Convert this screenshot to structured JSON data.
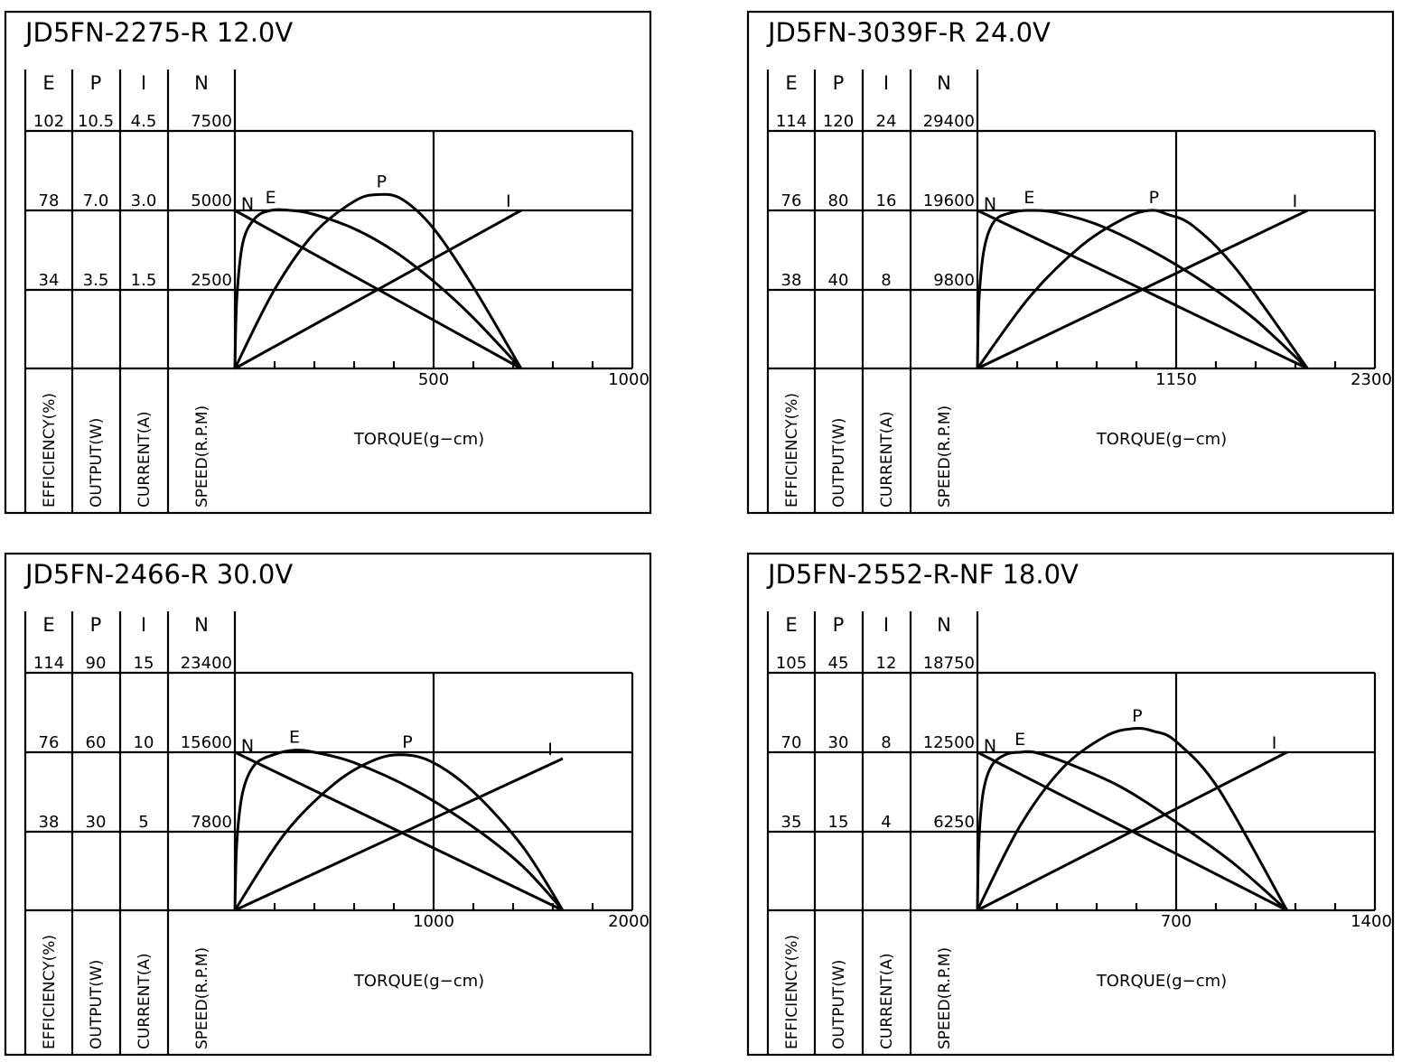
{
  "chart_data": [
    {
      "type": "line",
      "title": "JD5FN-2275-R   12.0V",
      "xlabel": "TORQUE(g−cm)",
      "x_ticks": [
        "500",
        "1000"
      ],
      "xlim": [
        0,
        1000
      ],
      "columns": [
        {
          "header": "E",
          "label": "EFFICIENCY(%)",
          "ticks": [
            "34",
            "78",
            "102"
          ]
        },
        {
          "header": "P",
          "label": "OUTPUT(W)",
          "ticks": [
            "3.5",
            "7.0",
            "10.5"
          ]
        },
        {
          "header": "I",
          "label": "CURRENT(A)",
          "ticks": [
            "1.5",
            "3.0",
            "4.5"
          ]
        },
        {
          "header": "N",
          "label": "SPEED(R.P.M)",
          "ticks": [
            "2500",
            "5000",
            "7500"
          ]
        }
      ],
      "grid": true,
      "series": [
        {
          "name": "N",
          "x": [
            0,
            720
          ],
          "y": [
            5000,
            0
          ]
        },
        {
          "name": "I",
          "x": [
            0,
            720
          ],
          "y": [
            0,
            3.0
          ]
        },
        {
          "name": "P",
          "x": [
            0,
            100,
            200,
            300,
            360,
            420,
            500,
            600,
            720
          ],
          "y": [
            0,
            3.5,
            6.0,
            7.4,
            7.7,
            7.5,
            6.2,
            3.6,
            0
          ]
        },
        {
          "name": "E",
          "x": [
            0,
            5,
            20,
            50,
            90,
            140,
            200,
            300,
            400,
            500,
            600,
            720
          ],
          "y": [
            0,
            35,
            62,
            74,
            78,
            78,
            76,
            69,
            58,
            43,
            25,
            0
          ]
        }
      ],
      "curve_labels": [
        "N",
        "E",
        "P",
        "I"
      ]
    },
    {
      "type": "line",
      "title": "JD5FN-3039F-R   24.0V",
      "xlabel": "TORQUE(g−cm)",
      "x_ticks": [
        "1150",
        "2300"
      ],
      "xlim": [
        0,
        2300
      ],
      "columns": [
        {
          "header": "E",
          "label": "EFFICIENCY(%)",
          "ticks": [
            "38",
            "76",
            "114"
          ]
        },
        {
          "header": "P",
          "label": "OUTPUT(W)",
          "ticks": [
            "40",
            "80",
            "120"
          ]
        },
        {
          "header": "I",
          "label": "CURRENT(A)",
          "ticks": [
            "8",
            "16",
            "24"
          ]
        },
        {
          "header": "N",
          "label": "SPEED(R.P.M)",
          "ticks": [
            "9800",
            "19600",
            "29400"
          ]
        }
      ],
      "grid": true,
      "series": [
        {
          "name": "N",
          "x": [
            0,
            1910
          ],
          "y": [
            19600,
            0
          ]
        },
        {
          "name": "I",
          "x": [
            0,
            1910
          ],
          "y": [
            0,
            16
          ]
        },
        {
          "name": "P",
          "x": [
            0,
            300,
            600,
            850,
            1000,
            1100,
            1250,
            1500,
            1910
          ],
          "y": [
            0,
            36,
            62,
            76,
            80,
            78,
            72,
            50,
            0
          ]
        },
        {
          "name": "E",
          "x": [
            0,
            10,
            40,
            100,
            200,
            300,
            450,
            700,
            1000,
            1300,
            1600,
            1910
          ],
          "y": [
            0,
            34,
            58,
            71,
            75,
            76,
            75,
            69,
            57,
            42,
            24,
            0
          ]
        }
      ],
      "curve_labels": [
        "N",
        "E",
        "P",
        "I"
      ]
    },
    {
      "type": "line",
      "title": "JD5FN-2466-R   30.0V",
      "xlabel": "TORQUE(g−cm)",
      "x_ticks": [
        "1000",
        "2000"
      ],
      "xlim": [
        0,
        2000
      ],
      "columns": [
        {
          "header": "E",
          "label": "EFFICIENCY(%)",
          "ticks": [
            "38",
            "76",
            "114"
          ]
        },
        {
          "header": "P",
          "label": "OUTPUT(W)",
          "ticks": [
            "30",
            "60",
            "90"
          ]
        },
        {
          "header": "I",
          "label": "CURRENT(A)",
          "ticks": [
            "5",
            "10",
            "15"
          ]
        },
        {
          "header": "N",
          "label": "SPEED(R.P.M)",
          "ticks": [
            "7800",
            "15600",
            "23400"
          ]
        }
      ],
      "grid": true,
      "series": [
        {
          "name": "N",
          "x": [
            0,
            1650
          ],
          "y": [
            15600,
            0
          ]
        },
        {
          "name": "I",
          "x": [
            0,
            1650
          ],
          "y": [
            0,
            9.6
          ]
        },
        {
          "name": "P",
          "x": [
            0,
            250,
            500,
            700,
            850,
            1000,
            1200,
            1450,
            1650
          ],
          "y": [
            0,
            29,
            48,
            57,
            59,
            56,
            45,
            24,
            0
          ]
        },
        {
          "name": "E",
          "x": [
            0,
            10,
            40,
            100,
            200,
            300,
            400,
            600,
            900,
            1200,
            1450,
            1650
          ],
          "y": [
            0,
            33,
            57,
            70,
            75,
            77,
            76,
            71,
            58,
            40,
            21,
            0
          ]
        }
      ],
      "curve_labels": [
        "N",
        "E",
        "P",
        "I"
      ]
    },
    {
      "type": "line",
      "title": "JD5FN-2552-R-NF   18.0V",
      "xlabel": "TORQUE(g−cm)",
      "x_ticks": [
        "700",
        "1400"
      ],
      "xlim": [
        0,
        1400
      ],
      "columns": [
        {
          "header": "E",
          "label": "EFFICIENCY(%)",
          "ticks": [
            "35",
            "70",
            "105"
          ]
        },
        {
          "header": "P",
          "label": "OUTPUT(W)",
          "ticks": [
            "15",
            "30",
            "45"
          ]
        },
        {
          "header": "I",
          "label": "CURRENT(A)",
          "ticks": [
            "4",
            "8",
            "12"
          ]
        },
        {
          "header": "N",
          "label": "SPEED(R.P.M)",
          "ticks": [
            "6250",
            "12500",
            "18750"
          ]
        }
      ],
      "grid": true,
      "series": [
        {
          "name": "N",
          "x": [
            0,
            1090
          ],
          "y": [
            12500,
            0
          ]
        },
        {
          "name": "I",
          "x": [
            0,
            1090
          ],
          "y": [
            0,
            8
          ]
        },
        {
          "name": "P",
          "x": [
            0,
            150,
            300,
            450,
            550,
            620,
            700,
            850,
            1090
          ],
          "y": [
            0,
            16,
            27,
            33,
            34.5,
            34,
            32,
            23,
            0
          ]
        },
        {
          "name": "E",
          "x": [
            0,
            5,
            20,
            50,
            100,
            150,
            200,
            300,
            500,
            700,
            900,
            1090
          ],
          "y": [
            0,
            30,
            52,
            64,
            69,
            70,
            70,
            66,
            55,
            39,
            21,
            0
          ]
        }
      ],
      "curve_labels": [
        "N",
        "E",
        "P",
        "I"
      ]
    }
  ]
}
